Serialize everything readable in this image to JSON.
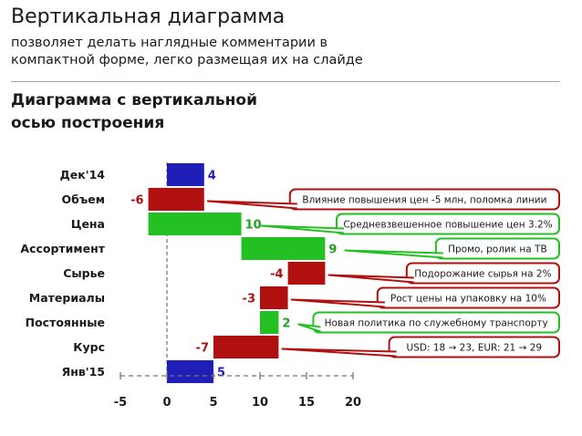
{
  "slide": {
    "title": "Вертикальная диаграмма",
    "subtitle": "позволяет делать наглядные комментарии в компактной форме, легко размещая их на слайде",
    "chart_heading": "Диаграмма с вертикальной осью построения"
  },
  "colors": {
    "total": "#1f1fb8",
    "decrease": "#b01010",
    "increase": "#22c022",
    "dec_text": "#b01010",
    "inc_text": "#22a022",
    "total_text": "#1f1fb8"
  },
  "chart_data": {
    "type": "waterfall",
    "orientation": "horizontal",
    "title": "Диаграмма с вертикальной осью построения",
    "xlim": [
      -5,
      20
    ],
    "x_ticks": [
      "-5",
      "0",
      "5",
      "10",
      "15",
      "20"
    ],
    "categories": [
      "Дек'14",
      "Объем",
      "Цена",
      "Ассортимент",
      "Сырье",
      "Материалы",
      "Постоянные",
      "Курс",
      "Янв'15"
    ],
    "values": [
      4,
      -6,
      10,
      9,
      -4,
      -3,
      2,
      -7,
      5
    ],
    "value_labels": [
      "4",
      "-6",
      "10",
      "9",
      "-4",
      "-3",
      "2",
      "-7",
      "5"
    ],
    "kinds": [
      "total",
      "decrease",
      "increase",
      "increase",
      "decrease",
      "decrease",
      "increase",
      "decrease",
      "total"
    ],
    "annotations": [
      "",
      "Влияние повышения цен -5 млн, поломка линии",
      "Средневзвешенное повышение цен 3.2%",
      "Промо, ролик на ТВ",
      "Подорожание сырья на 2%",
      "Рост цены на упаковку на 10%",
      "Новая политика по служебному транспорту",
      "USD: 18 → 23, EUR: 21 → 29",
      ""
    ]
  }
}
